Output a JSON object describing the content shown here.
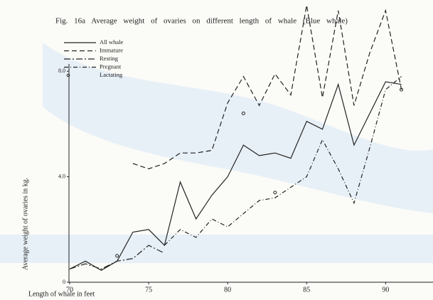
{
  "chart_data": {
    "type": "line",
    "title": "Fig. 16a  Average weight of ovaries on different length of whale (Blue whale)",
    "x_label": "Length of whale in feet",
    "y_label": "Average weight of ovaries in kg.",
    "x": [
      70,
      71,
      72,
      73,
      74,
      75,
      76,
      77,
      78,
      79,
      80,
      81,
      82,
      83,
      84,
      85,
      86,
      87,
      88,
      89,
      90,
      91
    ],
    "series": [
      {
        "name": "All whale",
        "color": "#222222",
        "line_style": "solid",
        "values": [
          0.5,
          0.8,
          0.45,
          0.8,
          1.9,
          2.0,
          1.4,
          3.8,
          2.4,
          3.3,
          4.0,
          5.2,
          4.8,
          4.9,
          4.7,
          6.1,
          5.8,
          7.5,
          5.2,
          6.4,
          7.6,
          7.5
        ]
      },
      {
        "name": "Immature",
        "color": "#222222",
        "line_style": "dashed",
        "values": [
          null,
          null,
          null,
          null,
          4.5,
          4.3,
          4.5,
          4.9,
          4.9,
          5.0,
          6.8,
          7.8,
          6.7,
          7.9,
          7.1,
          10.5,
          7.0,
          10.3,
          6.7,
          8.7,
          10.3,
          7.3
        ]
      },
      {
        "name": "Resting",
        "color": "#222222",
        "line_style": "dash-dot",
        "values": [
          0.5,
          0.7,
          0.5,
          0.8,
          0.9,
          1.4,
          1.1,
          null,
          null,
          null,
          null,
          null,
          null,
          null,
          null,
          null,
          null,
          null,
          null,
          null,
          null,
          null
        ]
      },
      {
        "name": "Pregnant",
        "color": "#222222",
        "line_style": "dash-cross",
        "values": [
          null,
          null,
          null,
          null,
          null,
          null,
          1.4,
          2.0,
          1.7,
          2.4,
          2.1,
          2.6,
          3.1,
          3.2,
          3.6,
          4.0,
          5.4,
          4.3,
          3.0,
          5.1,
          7.3,
          7.8
        ]
      },
      {
        "name": "Lactating",
        "color": "#222222",
        "line_style": "points",
        "values": [
          null,
          null,
          null,
          1.0,
          null,
          null,
          null,
          null,
          null,
          null,
          null,
          6.4,
          null,
          3.4,
          null,
          null,
          null,
          null,
          null,
          null,
          null,
          7.3
        ]
      }
    ],
    "xlim": [
      70,
      93
    ],
    "xticks": [
      70,
      75,
      80,
      85,
      90
    ],
    "ylim": [
      0,
      10.7
    ],
    "yticks": [
      0,
      {
        "value": 4,
        "label": "4.0"
      },
      {
        "value": 8,
        "label": "8.0"
      }
    ]
  }
}
